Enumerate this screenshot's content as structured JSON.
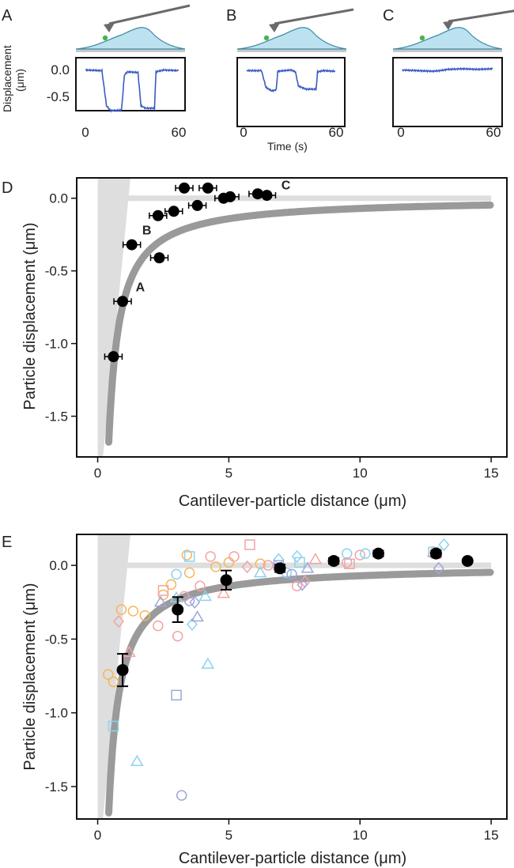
{
  "panels_top": [
    {
      "label": "A",
      "yticks": [
        "0.0",
        "-0.5"
      ],
      "xticks": [
        "0",
        "60"
      ],
      "trace": [
        [
          0,
          -0.02
        ],
        [
          11,
          -0.03
        ],
        [
          14,
          -0.6
        ],
        [
          17,
          -0.68
        ],
        [
          24,
          -0.67
        ],
        [
          26,
          -0.1
        ],
        [
          28,
          -0.05
        ],
        [
          35,
          -0.06
        ],
        [
          37,
          -0.6
        ],
        [
          40,
          -0.64
        ],
        [
          46,
          -0.64
        ],
        [
          47,
          -0.05
        ],
        [
          52,
          -0.02
        ],
        [
          62,
          -0.03
        ]
      ]
    },
    {
      "label": "B",
      "yticks": [],
      "xticks": [
        "0",
        "60"
      ],
      "trace": [
        [
          0,
          -0.03
        ],
        [
          10,
          -0.03
        ],
        [
          13,
          -0.3
        ],
        [
          17,
          -0.36
        ],
        [
          20,
          -0.34
        ],
        [
          21,
          -0.04
        ],
        [
          30,
          -0.02
        ],
        [
          33,
          -0.05
        ],
        [
          35,
          -0.28
        ],
        [
          40,
          -0.33
        ],
        [
          47,
          -0.33
        ],
        [
          48,
          -0.05
        ],
        [
          52,
          -0.03
        ],
        [
          60,
          -0.04
        ]
      ]
    },
    {
      "label": "C",
      "yticks": [],
      "xticks": [
        "0",
        "60"
      ],
      "trace": [
        [
          0,
          -0.02
        ],
        [
          10,
          -0.03
        ],
        [
          20,
          -0.04
        ],
        [
          25,
          -0.03
        ],
        [
          30,
          -0.01
        ],
        [
          40,
          -0.0
        ],
        [
          50,
          -0.01
        ],
        [
          60,
          -0.0
        ]
      ]
    }
  ],
  "top_axis": {
    "ylabel": "Displacement (μm)",
    "ylabel_line1": "Displacement",
    "ylabel_line2": "(μm)",
    "xlabel": "Time (s)"
  },
  "chart_data": [
    {
      "label": "D",
      "type": "scatter",
      "xlabel": "Cantilever-particle distance (μm)",
      "ylabel": "Particle displacement (μm)",
      "xlim": [
        -0.8,
        15.6
      ],
      "ylim": [
        -1.78,
        0.14
      ],
      "xticks": [
        0,
        5,
        10,
        15
      ],
      "yticks": [
        "0.0",
        "-0.5",
        "-1.0",
        "-1.5"
      ],
      "points": [
        {
          "x": 0.6,
          "y": -1.09
        },
        {
          "x": 0.95,
          "y": -0.71
        },
        {
          "x": 1.3,
          "y": -0.32
        },
        {
          "x": 2.3,
          "y": -0.12
        },
        {
          "x": 2.35,
          "y": -0.41
        },
        {
          "x": 2.9,
          "y": -0.09
        },
        {
          "x": 3.3,
          "y": 0.07
        },
        {
          "x": 3.8,
          "y": -0.05
        },
        {
          "x": 4.2,
          "y": 0.07
        },
        {
          "x": 4.8,
          "y": 0.0
        },
        {
          "x": 5.05,
          "y": 0.01
        },
        {
          "x": 6.1,
          "y": 0.03
        },
        {
          "x": 6.45,
          "y": 0.02
        }
      ],
      "annotations": [
        {
          "text": "A",
          "x": 1.45,
          "y": -0.64
        },
        {
          "text": "B",
          "x": 1.7,
          "y": -0.25
        },
        {
          "text": "C",
          "x": 7.0,
          "y": 0.06
        }
      ],
      "model_curve_k": 0.705
    },
    {
      "label": "E",
      "type": "scatter",
      "xlabel": "Cantilever-particle distance (μm)",
      "ylabel": "Particle displacement (μm)",
      "xlim": [
        -0.8,
        15.6
      ],
      "ylim": [
        -1.72,
        0.21
      ],
      "xticks": [
        0,
        5,
        10,
        15
      ],
      "yticks": [
        "0.0",
        "-0.5",
        "-1.0",
        "-1.5"
      ],
      "means": [
        {
          "x": 0.95,
          "y": -0.71,
          "err": 0.11
        },
        {
          "x": 3.05,
          "y": -0.3,
          "err": 0.085
        },
        {
          "x": 4.9,
          "y": -0.1,
          "err": 0.065
        },
        {
          "x": 6.95,
          "y": -0.02,
          "err": 0.025
        },
        {
          "x": 9.0,
          "y": 0.03,
          "err": 0.02
        },
        {
          "x": 10.7,
          "y": 0.08,
          "err": 0.02
        },
        {
          "x": 12.9,
          "y": 0.08,
          "err": 0.02
        },
        {
          "x": 14.1,
          "y": 0.03,
          "err": 0.0
        }
      ],
      "individual": [
        {
          "s": "circle",
          "c": "#f7b55a",
          "x": 0.4,
          "y": -0.74
        },
        {
          "s": "circle",
          "c": "#f7b55a",
          "x": 0.6,
          "y": -0.79
        },
        {
          "s": "circle",
          "c": "#f7b55a",
          "x": 0.9,
          "y": -0.3
        },
        {
          "s": "circle",
          "c": "#f7b55a",
          "x": 1.8,
          "y": -0.34
        },
        {
          "s": "circle",
          "c": "#f7b55a",
          "x": 2.8,
          "y": -0.13
        },
        {
          "s": "circle",
          "c": "#f7b55a",
          "x": 3.5,
          "y": -0.05
        },
        {
          "s": "circle",
          "c": "#f7b55a",
          "x": 4.5,
          "y": -0.01
        },
        {
          "s": "circle",
          "c": "#f7b55a",
          "x": 5.0,
          "y": 0.02
        },
        {
          "s": "circle",
          "c": "#f7b55a",
          "x": 6.2,
          "y": 0.01
        },
        {
          "s": "circle",
          "c": "#f7b55a",
          "x": 3.4,
          "y": 0.07
        },
        {
          "s": "circle",
          "c": "#f7b55a",
          "x": 1.35,
          "y": -0.31
        },
        {
          "s": "circle",
          "c": "#f7b55a",
          "x": 2.5,
          "y": -0.2
        },
        {
          "s": "circle",
          "c": "#f4a3a3",
          "x": 2.3,
          "y": -0.41
        },
        {
          "s": "circle",
          "c": "#f4a3a3",
          "x": 3.05,
          "y": -0.48
        },
        {
          "s": "circle",
          "c": "#f4a3a3",
          "x": 3.3,
          "y": -0.21
        },
        {
          "s": "circle",
          "c": "#f4a3a3",
          "x": 6.5,
          "y": -0.0
        },
        {
          "s": "circle",
          "c": "#f4a3a3",
          "x": 7.6,
          "y": -0.14
        },
        {
          "s": "circle",
          "c": "#f4a3a3",
          "x": 9.5,
          "y": 0.02
        },
        {
          "s": "circle",
          "c": "#f4a3a3",
          "x": 10.0,
          "y": 0.07
        },
        {
          "s": "circle",
          "c": "#f4a3a3",
          "x": 4.3,
          "y": 0.06
        },
        {
          "s": "circle",
          "c": "#f4a3a3",
          "x": 5.2,
          "y": 0.06
        },
        {
          "s": "circle",
          "c": "#f4a3a3",
          "x": 3.9,
          "y": -0.14
        },
        {
          "s": "square",
          "c": "#f4a3a3",
          "x": 2.5,
          "y": -0.17
        },
        {
          "s": "square",
          "c": "#f4a3a3",
          "x": 5.8,
          "y": 0.14
        },
        {
          "s": "square",
          "c": "#f4a3a3",
          "x": 9.6,
          "y": 0.01
        },
        {
          "s": "square",
          "c": "#f4a3a3",
          "x": 12.9,
          "y": 0.08
        },
        {
          "s": "triangle",
          "c": "#f4a3a3",
          "x": 1.2,
          "y": -0.59
        },
        {
          "s": "triangle",
          "c": "#f4a3a3",
          "x": 4.8,
          "y": -0.19
        },
        {
          "s": "triangle",
          "c": "#f4a3a3",
          "x": 8.3,
          "y": 0.04
        },
        {
          "s": "triangle",
          "c": "#f4a3a3",
          "x": 12.8,
          "y": 0.09
        },
        {
          "s": "diamond",
          "c": "#f4a3a3",
          "x": 0.8,
          "y": -0.38
        },
        {
          "s": "diamond",
          "c": "#f4a3a3",
          "x": 5.7,
          "y": -0.01
        },
        {
          "s": "diamond",
          "c": "#f4a3a3",
          "x": 7.9,
          "y": -0.11
        },
        {
          "s": "circle",
          "c": "#8ad3ef",
          "x": 3.0,
          "y": -0.06
        },
        {
          "s": "circle",
          "c": "#8ad3ef",
          "x": 9.5,
          "y": 0.08
        },
        {
          "s": "circle",
          "c": "#8ad3ef",
          "x": 10.2,
          "y": 0.08
        },
        {
          "s": "circle",
          "c": "#8ad3ef",
          "x": 7.2,
          "y": -0.05
        },
        {
          "s": "square",
          "c": "#8ad3ef",
          "x": 0.6,
          "y": -1.09
        },
        {
          "s": "square",
          "c": "#8ad3ef",
          "x": 3.5,
          "y": 0.06
        },
        {
          "s": "square",
          "c": "#8ad3ef",
          "x": 7.7,
          "y": 0.02
        },
        {
          "s": "square",
          "c": "#8ad3ef",
          "x": 12.8,
          "y": 0.09
        },
        {
          "s": "triangle",
          "c": "#8ad3ef",
          "x": 1.5,
          "y": -1.33
        },
        {
          "s": "triangle",
          "c": "#8ad3ef",
          "x": 4.2,
          "y": -0.67
        },
        {
          "s": "triangle",
          "c": "#8ad3ef",
          "x": 4.1,
          "y": -0.21
        },
        {
          "s": "triangle",
          "c": "#8ad3ef",
          "x": 6.2,
          "y": -0.05
        },
        {
          "s": "triangle",
          "c": "#8ad3ef",
          "x": 3.0,
          "y": -0.22
        },
        {
          "s": "diamond",
          "c": "#8ad3ef",
          "x": 3.6,
          "y": -0.4
        },
        {
          "s": "diamond",
          "c": "#8ad3ef",
          "x": 6.9,
          "y": 0.04
        },
        {
          "s": "diamond",
          "c": "#8ad3ef",
          "x": 7.6,
          "y": 0.06
        },
        {
          "s": "diamond",
          "c": "#8ad3ef",
          "x": 13.2,
          "y": 0.14
        },
        {
          "s": "circle",
          "c": "#9fa6dc",
          "x": 3.2,
          "y": -1.56
        },
        {
          "s": "circle",
          "c": "#9fa6dc",
          "x": 7.4,
          "y": -0.06
        },
        {
          "s": "circle",
          "c": "#9fa6dc",
          "x": 3.5,
          "y": -0.24
        },
        {
          "s": "square",
          "c": "#9fa6dc",
          "x": 3.0,
          "y": -0.88
        },
        {
          "s": "square",
          "c": "#9fa6dc",
          "x": 6.9,
          "y": 0.0
        },
        {
          "s": "triangle",
          "c": "#9fa6dc",
          "x": 2.4,
          "y": -0.25
        },
        {
          "s": "triangle",
          "c": "#9fa6dc",
          "x": 3.8,
          "y": -0.35
        },
        {
          "s": "triangle",
          "c": "#9fa6dc",
          "x": 8.0,
          "y": -0.02
        },
        {
          "s": "diamond",
          "c": "#9fa6dc",
          "x": 7.8,
          "y": -0.13
        },
        {
          "s": "diamond",
          "c": "#9fa6dc",
          "x": 13.0,
          "y": -0.02
        },
        {
          "s": "diamond",
          "c": "#9fa6dc",
          "x": 3.7,
          "y": -0.25
        }
      ],
      "model_curve_k": 0.705
    }
  ],
  "colors": {
    "trace": "#3b5bc5",
    "cell": "#bde2ef",
    "cell_edge": "#3b8aa6",
    "cantilever": "#6a6a6a",
    "particle": "#45b649",
    "model": "#9a9a9a",
    "zero_line": "#dedede",
    "wedge": "#dedede",
    "mean_marker": "#000000"
  }
}
